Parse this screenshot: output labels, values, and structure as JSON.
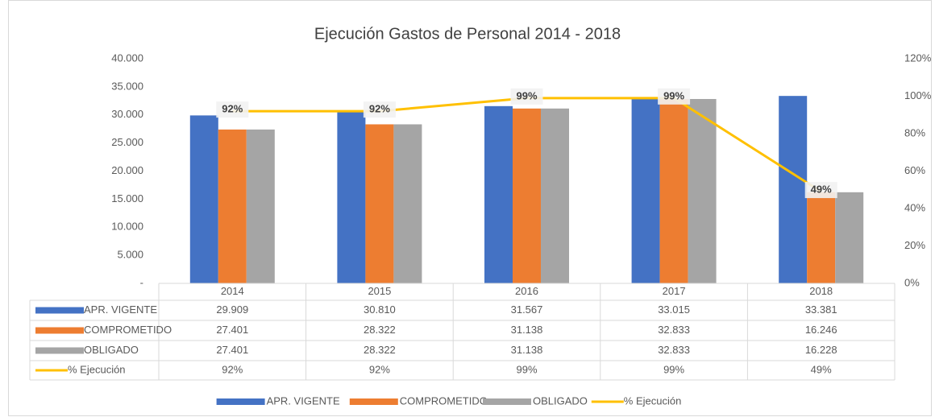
{
  "chart_data": {
    "type": "bar",
    "title": "Ejecución Gastos de Personal 2014 - 2018",
    "categories": [
      "2014",
      "2015",
      "2016",
      "2017",
      "2018"
    ],
    "series": [
      {
        "name": "APR. VIGENTE",
        "color": "#4472c4",
        "values": [
          29909,
          30810,
          31567,
          33015,
          33381
        ],
        "value_labels": [
          "29.909",
          "30.810",
          "31.567",
          "33.015",
          "33.381"
        ]
      },
      {
        "name": "COMPROMETIDO",
        "color": "#ed7d31",
        "values": [
          27401,
          28322,
          31138,
          32833,
          16246
        ],
        "value_labels": [
          "27.401",
          "28.322",
          "31.138",
          "32.833",
          "16.246"
        ]
      },
      {
        "name": "OBLIGADO",
        "color": "#a5a5a5",
        "values": [
          27401,
          28322,
          31138,
          32833,
          16228
        ],
        "value_labels": [
          "27.401",
          "28.322",
          "31.138",
          "32.833",
          "16.228"
        ]
      },
      {
        "name": "% Ejecución",
        "color": "#ffc000",
        "type": "line",
        "axis": "y2",
        "values": [
          92,
          92,
          99,
          99,
          49
        ],
        "value_labels": [
          "92%",
          "92%",
          "99%",
          "99%",
          "49%"
        ]
      }
    ],
    "ylim": [
      0,
      40000
    ],
    "yticks": [
      {
        "value": 0,
        "label": "-"
      },
      {
        "value": 5000,
        "label": "5.000"
      },
      {
        "value": 10000,
        "label": "10.000"
      },
      {
        "value": 15000,
        "label": "15.000"
      },
      {
        "value": 20000,
        "label": "20.000"
      },
      {
        "value": 25000,
        "label": "25.000"
      },
      {
        "value": 30000,
        "label": "30.000"
      },
      {
        "value": 35000,
        "label": "35.000"
      },
      {
        "value": 40000,
        "label": "40.000"
      }
    ],
    "y2lim": [
      0,
      120
    ],
    "y2ticks": [
      {
        "value": 0,
        "label": "0%"
      },
      {
        "value": 20,
        "label": "20%"
      },
      {
        "value": 40,
        "label": "40%"
      },
      {
        "value": 60,
        "label": "60%"
      },
      {
        "value": 80,
        "label": "80%"
      },
      {
        "value": 100,
        "label": "100%"
      },
      {
        "value": 120,
        "label": "120%"
      }
    ],
    "grid": false,
    "legend": "bottom",
    "data_table": true
  }
}
